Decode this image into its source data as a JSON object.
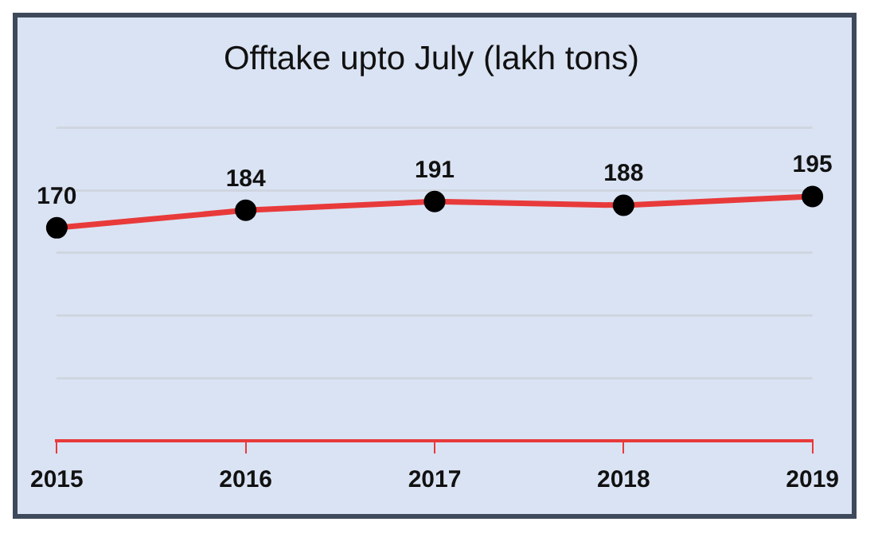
{
  "chart_data": {
    "type": "line",
    "title": "Offtake upto July (lakh tons)",
    "categories": [
      "2015",
      "2016",
      "2017",
      "2018",
      "2019"
    ],
    "series": [
      {
        "color": "#e83a3a",
        "values": [
          170,
          184,
          191,
          188,
          195
        ]
      }
    ],
    "ylim": [
      0,
      250
    ],
    "yticks": [
      {
        "value": 0,
        "label": null
      },
      {
        "value": 50,
        "label": null
      },
      {
        "value": 100,
        "label": null
      },
      {
        "value": 150,
        "label": null
      },
      {
        "value": 200,
        "label": null
      },
      {
        "value": 250,
        "label": null
      }
    ],
    "grid": "y",
    "tick_labels": "x",
    "marker": "circle",
    "line_style": "solid",
    "data_labels": true,
    "legend": false
  }
}
